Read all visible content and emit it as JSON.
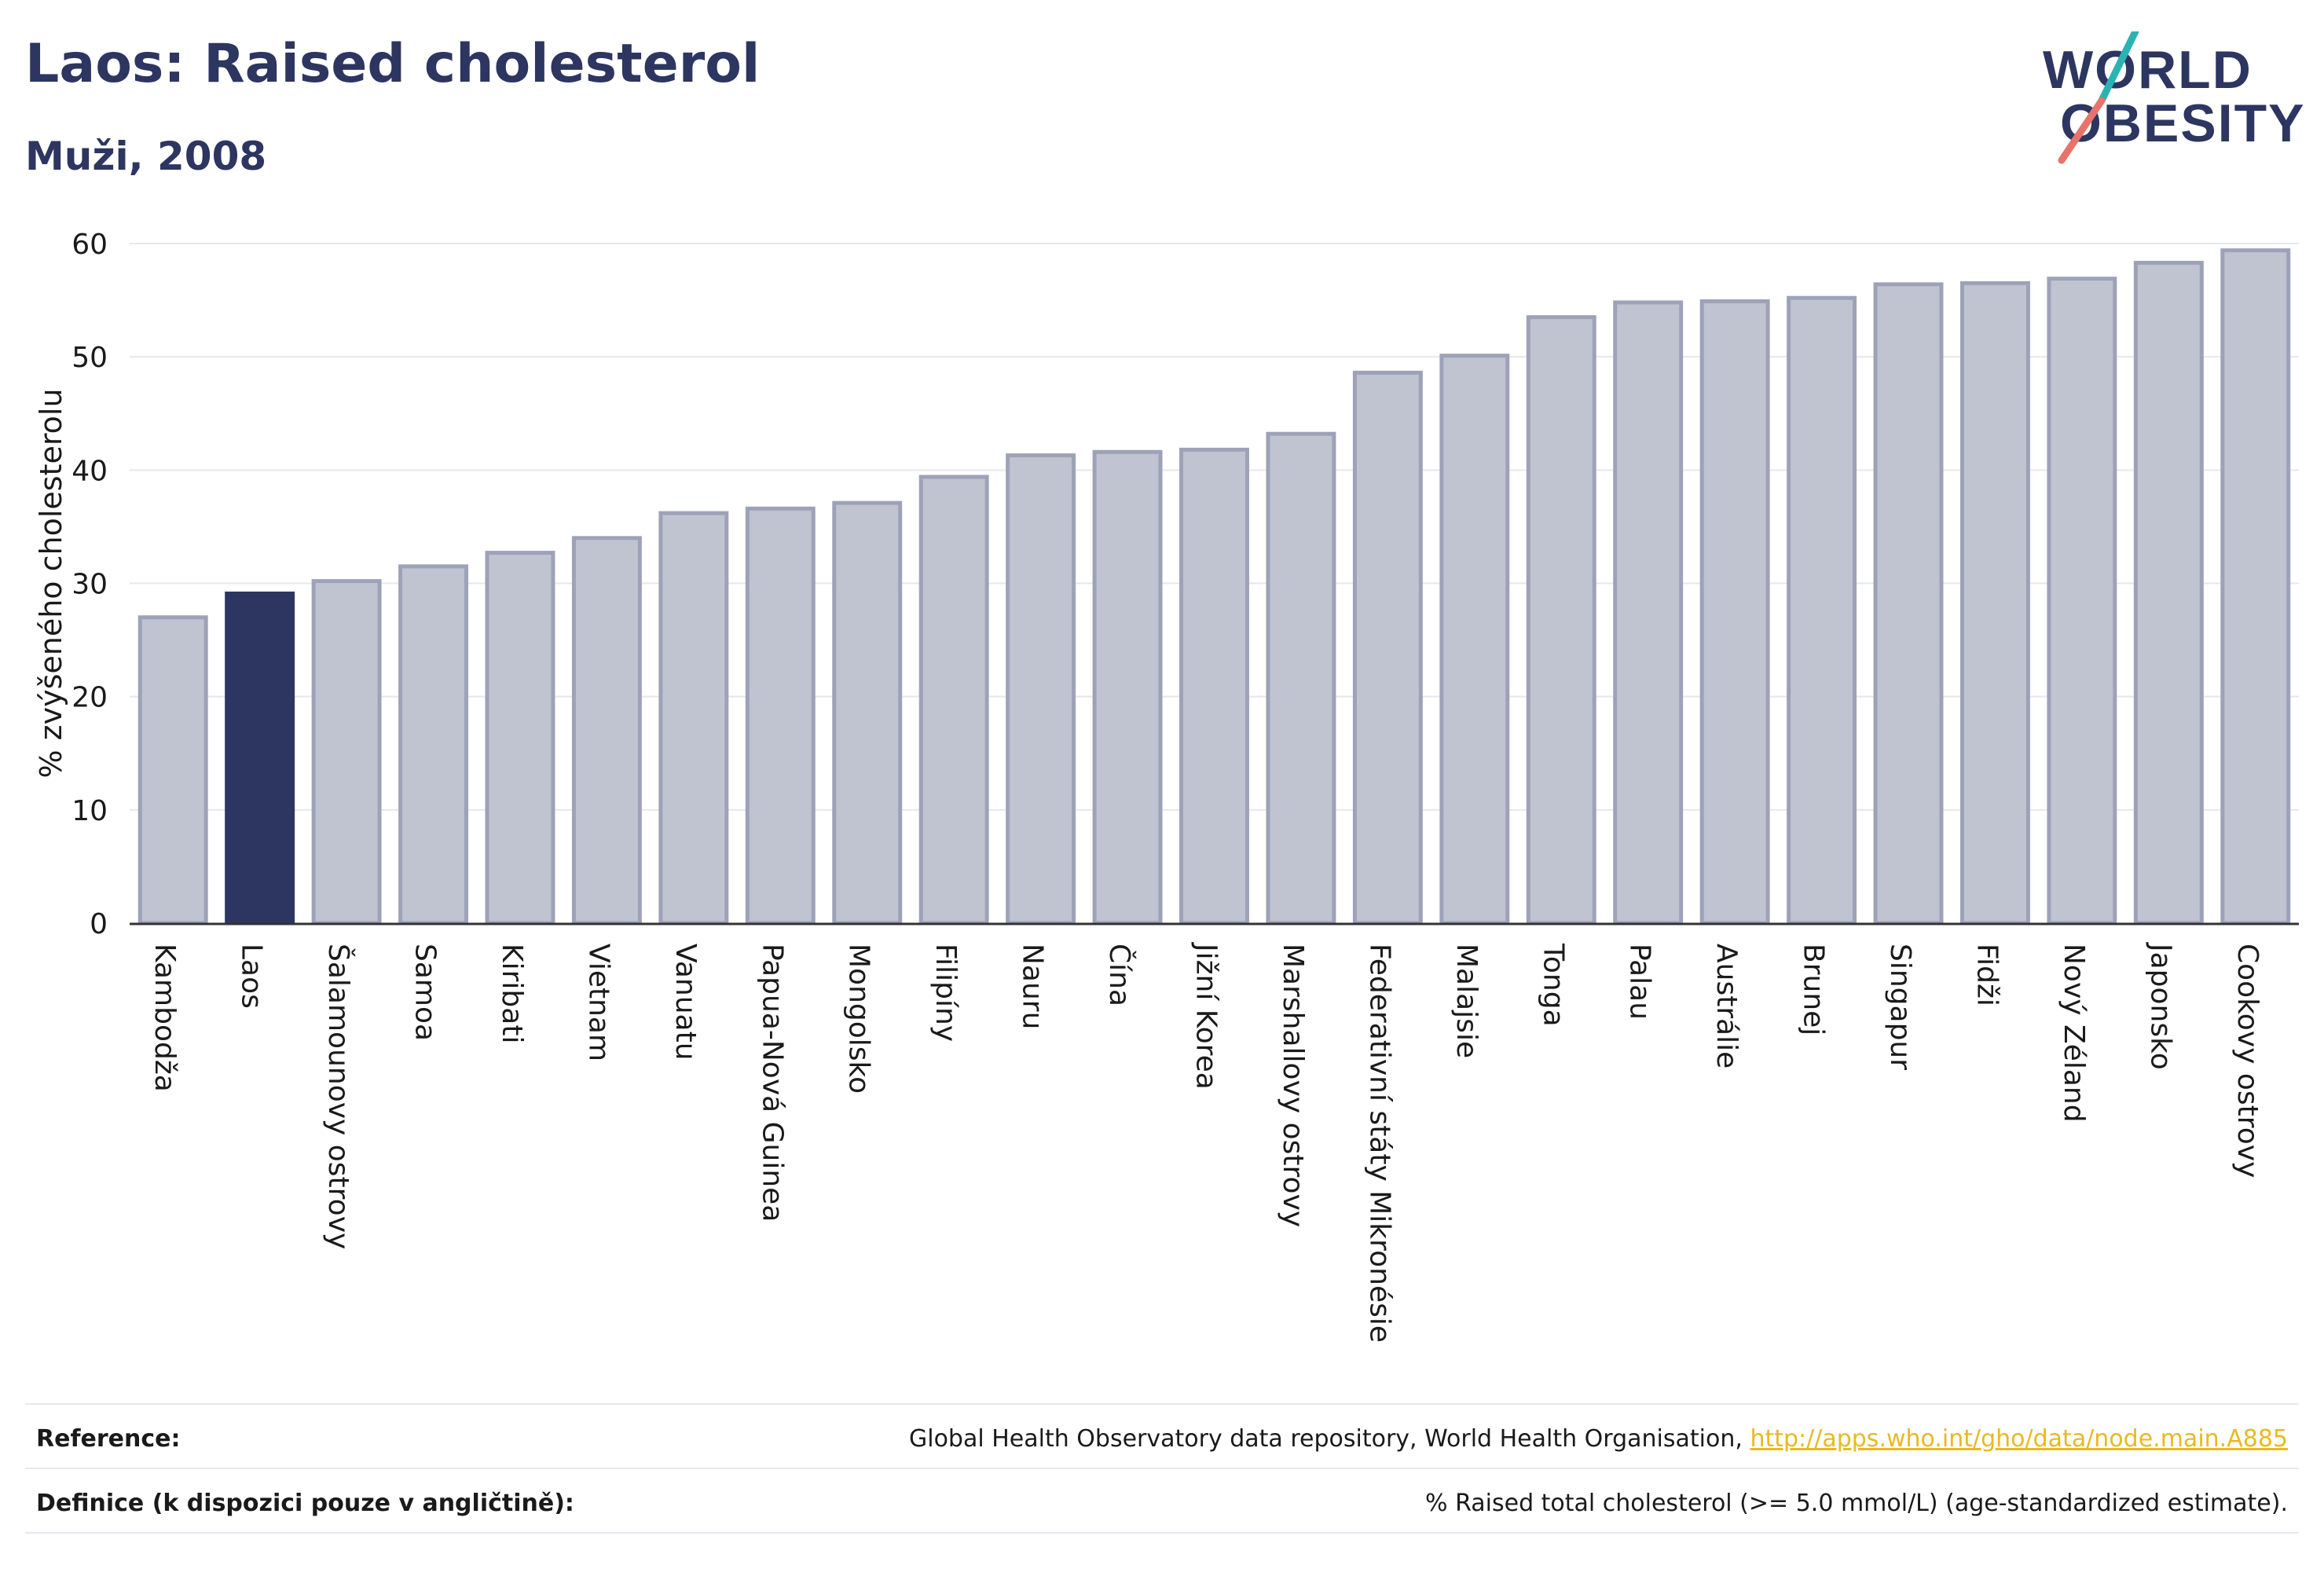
{
  "header": {
    "title": "Laos: Raised cholesterol",
    "subtitle": "Muži, 2008"
  },
  "logo": {
    "line1": "WORLD",
    "line2": "OBESITY",
    "colors": {
      "text": "#2d3561",
      "slash_teal": "#2bb3b1",
      "slash_coral": "#e8736a"
    }
  },
  "chart_data": {
    "type": "bar",
    "title": "",
    "xlabel": "",
    "ylabel": "% zvýšeného cholesterolu",
    "ylim": [
      0,
      60
    ],
    "yticks": [
      0,
      10,
      20,
      30,
      40,
      50,
      60
    ],
    "grid": true,
    "highlight": "Laos",
    "colors": {
      "bar": "#c0c3d0",
      "bar_edge": "#9ea2b8",
      "highlight": "#2d3561",
      "grid": "#e6e8ef",
      "axis": "#333333"
    },
    "categories": [
      "Kambodža",
      "Laos",
      "Šalamounovy ostrovy",
      "Samoa",
      "Kiribati",
      "Vietnam",
      "Vanuatu",
      "Papua-Nová Guinea",
      "Mongolsko",
      "Filipíny",
      "Nauru",
      "Čína",
      "Jižní Korea",
      "Marshallovy ostrovy",
      "Federativní státy Mikronésie",
      "Malajsie",
      "Tonga",
      "Palau",
      "Austrálie",
      "Brunej",
      "Singapur",
      "Fidži",
      "Nový Zéland",
      "Japonsko",
      "Cookovy ostrovy"
    ],
    "values": [
      27.0,
      29.1,
      30.2,
      31.5,
      32.7,
      34.0,
      36.2,
      36.6,
      37.1,
      39.4,
      41.3,
      41.6,
      41.8,
      43.2,
      48.6,
      50.1,
      53.5,
      54.8,
      54.9,
      55.2,
      56.4,
      56.5,
      56.9,
      58.3,
      59.4
    ]
  },
  "footer": {
    "reference_label": "Reference:",
    "reference_text": "Global Health Observatory data repository, World Health Organisation,",
    "reference_link": "http://apps.who.int/gho/data/node.main.A885",
    "definition_label": "Definice (k dispozici pouze v angličtině):",
    "definition_text": "% Raised total cholesterol (>= 5.0 mmol/L) (age-standardized estimate)."
  }
}
